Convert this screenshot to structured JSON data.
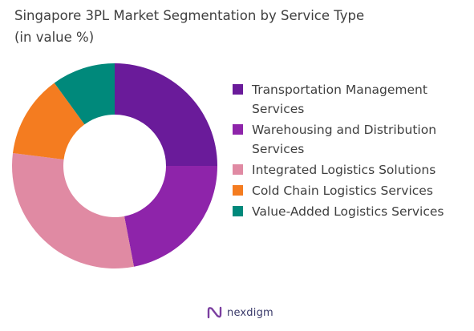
{
  "chart_data": {
    "type": "pie",
    "title_lines": [
      "Singapore 3PL Market Segmentation by Service Type",
      "(in value %)"
    ],
    "legend_placement": "right",
    "series": [
      {
        "name": "Transportation Management Services",
        "value": 25,
        "color": "#6a1b9a"
      },
      {
        "name": "Warehousing and Distribution Services",
        "value": 22,
        "color": "#8e24aa"
      },
      {
        "name": "Integrated Logistics Solutions",
        "value": 30,
        "color": "#e08aa3"
      },
      {
        "name": "Cold Chain Logistics Services",
        "value": 13,
        "color": "#f47c20"
      },
      {
        "name": "Value-Added Logistics Services",
        "value": 10,
        "color": "#00897b"
      }
    ]
  },
  "brand": {
    "name": "nexdigm",
    "icon": "nexdigm-logo-icon",
    "color": "#7b3fa0"
  }
}
